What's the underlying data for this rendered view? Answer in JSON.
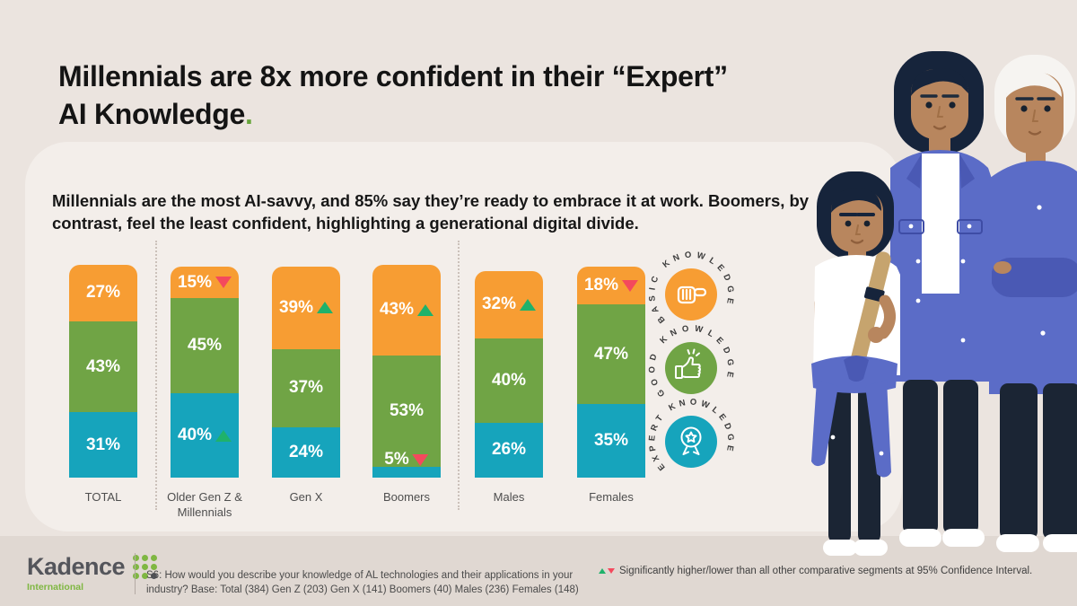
{
  "header": {
    "title_line1": "Millennials are 8x more confident in their “Expert”",
    "title_line2": "AI Knowledge",
    "title_period": ".",
    "subtitle": "Millennials are the most AI-savvy, and 85% say they’re ready to embrace it at work. Boomers, by contrast, feel the least confident, highlighting a generational digital divide."
  },
  "colors": {
    "background": "#EBE4DF",
    "ground_strip": "#E0D8D2",
    "card": "#F3EEEA",
    "basic_orange": "#F79D33",
    "good_green": "#70A445",
    "expert_teal": "#16A4BC",
    "significant_up": "#1FB26B",
    "significant_down": "#F4495D",
    "title_text": "#141414",
    "title_accent_green": "#67A53B",
    "logo_green": "#7FB742",
    "logo_gray": "#54555B"
  },
  "chart_data": {
    "type": "bar",
    "stacked": true,
    "unit": "%",
    "orientation": "vertical",
    "order_top_to_bottom": [
      "Basic Knowledge",
      "Good Knowledge",
      "Expert Knowledge"
    ],
    "categories": [
      "TOTAL",
      "Older Gen Z & Millennials",
      "Gen X",
      "Boomers",
      "Males",
      "Females"
    ],
    "series": [
      {
        "name": "Basic Knowledge",
        "color": "#F79D33",
        "values": [
          27,
          15,
          39,
          43,
          32,
          18
        ]
      },
      {
        "name": "Good Knowledge",
        "color": "#70A445",
        "values": [
          43,
          45,
          37,
          53,
          40,
          47
        ]
      },
      {
        "name": "Expert Knowledge",
        "color": "#16A4BC",
        "values": [
          31,
          40,
          24,
          5,
          26,
          35
        ]
      }
    ],
    "significance": [
      {
        "category": "Older Gen Z & Millennials",
        "segment": "Basic Knowledge",
        "direction": "lower"
      },
      {
        "category": "Older Gen Z & Millennials",
        "segment": "Expert Knowledge",
        "direction": "higher"
      },
      {
        "category": "Gen X",
        "segment": "Basic Knowledge",
        "direction": "higher"
      },
      {
        "category": "Boomers",
        "segment": "Basic Knowledge",
        "direction": "higher"
      },
      {
        "category": "Boomers",
        "segment": "Expert Knowledge",
        "direction": "lower"
      },
      {
        "category": "Males",
        "segment": "Basic Knowledge",
        "direction": "higher"
      },
      {
        "category": "Females",
        "segment": "Basic Knowledge",
        "direction": "lower"
      }
    ],
    "value_label_format": "{v}%",
    "legend_position": "right",
    "grid": false
  },
  "legend": {
    "items": [
      {
        "label": "BASIC KNOWLEDGE",
        "color": "#F79D33",
        "icon": "pointing-hand-icon"
      },
      {
        "label": "GOOD KNOWLEDGE",
        "color": "#70A445",
        "icon": "thumbs-up-icon"
      },
      {
        "label": "EXPERT KNOWLEDGE",
        "color": "#16A4BC",
        "icon": "medal-icon"
      }
    ]
  },
  "footer": {
    "logo_word": "Kadence",
    "logo_sub": "International",
    "survey_note": "S6: How would you describe your knowledge of AL technologies and their applications in your industry? Base: Total (384) Gen Z (203) Gen X (141) Boomers (40) Males (236) Females (148)",
    "significance_note": "Significantly higher/lower than all other comparative segments at 95% Confidence Interval."
  }
}
